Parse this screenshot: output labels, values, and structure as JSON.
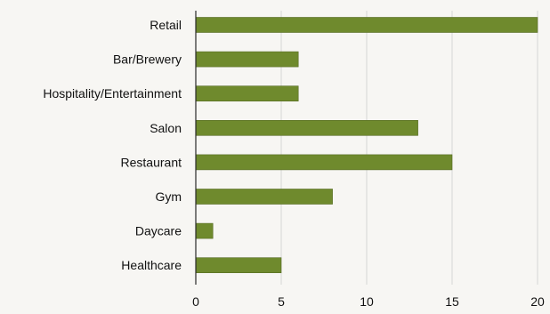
{
  "chart_data": {
    "type": "bar",
    "orientation": "horizontal",
    "title": "",
    "xlabel": "",
    "ylabel": "",
    "categories": [
      "Retail",
      "Bar/Brewery",
      "Hospitality/Entertainment",
      "Salon",
      "Restaurant",
      "Gym",
      "Daycare",
      "Healthcare"
    ],
    "values": [
      20,
      6,
      6,
      13,
      15,
      8,
      1,
      5
    ],
    "xlim": [
      0,
      20
    ],
    "xticks": [
      "0",
      "5",
      "10",
      "15",
      "20"
    ],
    "grid": "vertical",
    "legend": "none",
    "colors": {
      "bar": "#6f8a2d",
      "axis": "#2a2a2a",
      "grid": "#d6d6d6",
      "text": "#111111",
      "background": "#f7f6f3"
    }
  }
}
